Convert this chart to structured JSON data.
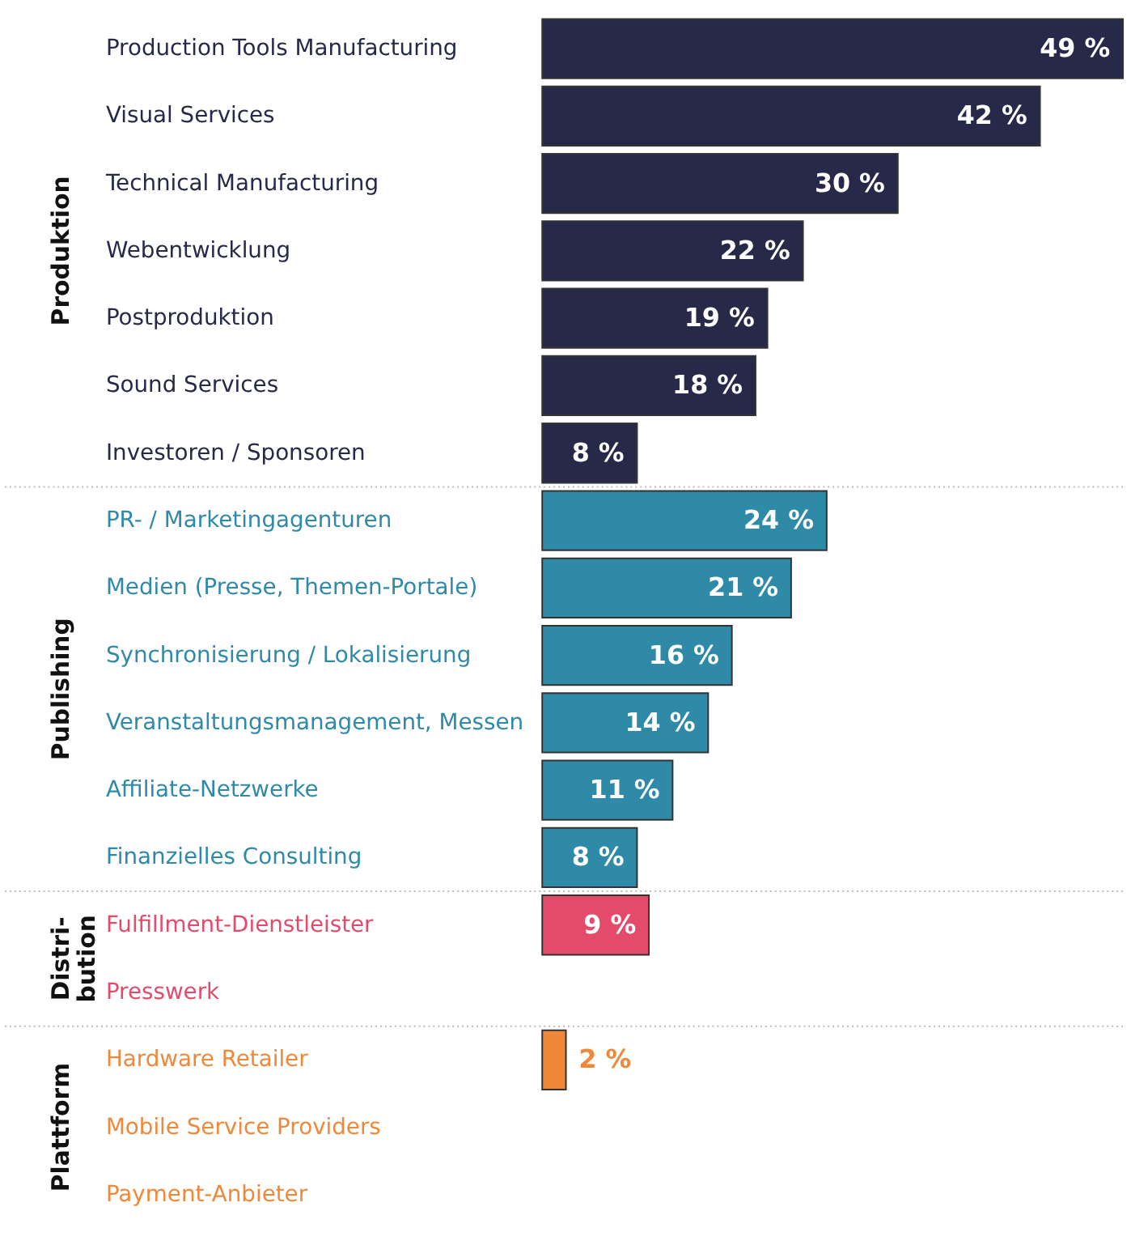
{
  "chart_data": {
    "type": "bar",
    "orientation": "horizontal",
    "categories": [
      "Production Tools Manufacturing",
      "Visual Services",
      "Technical Manufacturing",
      "Webentwicklung",
      "Postproduktion",
      "Sound Services",
      "Investoren / Sponsoren",
      "PR- / Marketingagenturen",
      "Medien (Presse, Themen-Portale)",
      "Synchronisierung / Lokalisierung",
      "Veranstaltungsmanagement, Messen",
      "Affiliate-Netzwerke",
      "Finanzielles Consulting",
      "Fulfillment-Dienstleister",
      "Presswerk",
      "Hardware Retailer",
      "Mobile Service Providers",
      "Payment-Anbieter"
    ],
    "series": [
      {
        "color": "#262a48",
        "values": [
          49,
          42,
          30,
          22,
          19,
          18,
          8,
          null,
          null,
          null,
          null,
          null,
          null,
          null,
          null,
          null,
          null,
          null
        ],
        "value_labels": [
          "49 %",
          "42 %",
          "30 %",
          "22 %",
          "19 %",
          "18 %",
          "8 %",
          null,
          null,
          null,
          null,
          null,
          null,
          null,
          null,
          null,
          null,
          null
        ]
      },
      {
        "color": "#2f8aa8",
        "values": [
          null,
          null,
          null,
          null,
          null,
          null,
          null,
          24,
          21,
          16,
          14,
          11,
          8,
          null,
          null,
          null,
          null,
          null
        ],
        "value_labels": [
          null,
          null,
          null,
          null,
          null,
          null,
          null,
          "24 %",
          "21 %",
          "16 %",
          "14 %",
          "11 %",
          "8 %",
          null,
          null,
          null,
          null,
          null
        ]
      },
      {
        "color": "#e44b6b",
        "values": [
          null,
          null,
          null,
          null,
          null,
          null,
          null,
          null,
          null,
          null,
          null,
          null,
          null,
          9,
          null,
          null,
          null,
          null
        ],
        "value_labels": [
          null,
          null,
          null,
          null,
          null,
          null,
          null,
          null,
          null,
          null,
          null,
          null,
          null,
          "9 %",
          null,
          null,
          null,
          null
        ]
      },
      {
        "color": "#f0883a",
        "values": [
          null,
          null,
          null,
          null,
          null,
          null,
          null,
          null,
          null,
          null,
          null,
          null,
          null,
          null,
          null,
          2,
          null,
          null
        ],
        "value_labels": [
          null,
          null,
          null,
          null,
          null,
          null,
          null,
          null,
          null,
          null,
          null,
          null,
          null,
          null,
          null,
          "2 %",
          null,
          null
        ]
      }
    ],
    "annotations": [
      "Produktion",
      "Publishing",
      "Distri-bution",
      "Plattform"
    ],
    "legend": false,
    "grid": false
  }
}
